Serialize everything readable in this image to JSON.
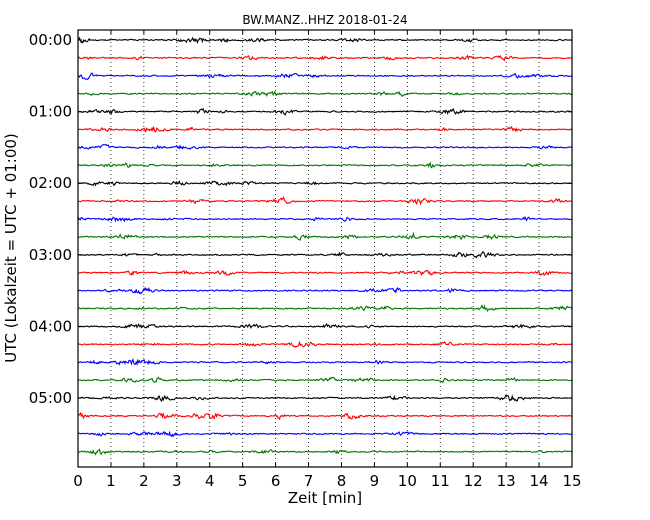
{
  "chart_data": {
    "type": "line",
    "title": "BW.MANZ..HHZ 2018-01-24",
    "xlabel": "Zeit  [min]",
    "ylabel": "UTC (Lokalzeit = UTC + 01:00)",
    "xlim": [
      0,
      15
    ],
    "xticks": [
      "0",
      "1",
      "2",
      "3",
      "4",
      "5",
      "6",
      "7",
      "8",
      "9",
      "10",
      "11",
      "12",
      "13",
      "14",
      "15"
    ],
    "yticks": [
      "00:00",
      "01:00",
      "02:00",
      "03:00",
      "04:00",
      "05:00"
    ],
    "grid": "vertical dotted lines at each minute",
    "trace_interval_minutes": 15,
    "trace_count": 24,
    "trace_colors": [
      "#000000",
      "#ff0000",
      "#0000ff",
      "#007700"
    ],
    "series": [
      {
        "start": "00:00",
        "color": "#000000"
      },
      {
        "start": "00:15",
        "color": "#ff0000"
      },
      {
        "start": "00:30",
        "color": "#0000ff"
      },
      {
        "start": "00:45",
        "color": "#007700"
      },
      {
        "start": "01:00",
        "color": "#000000"
      },
      {
        "start": "01:15",
        "color": "#ff0000"
      },
      {
        "start": "01:30",
        "color": "#0000ff"
      },
      {
        "start": "01:45",
        "color": "#007700"
      },
      {
        "start": "02:00",
        "color": "#000000"
      },
      {
        "start": "02:15",
        "color": "#ff0000"
      },
      {
        "start": "02:30",
        "color": "#0000ff"
      },
      {
        "start": "02:45",
        "color": "#007700"
      },
      {
        "start": "03:00",
        "color": "#000000"
      },
      {
        "start": "03:15",
        "color": "#ff0000"
      },
      {
        "start": "03:30",
        "color": "#0000ff"
      },
      {
        "start": "03:45",
        "color": "#007700"
      },
      {
        "start": "04:00",
        "color": "#000000"
      },
      {
        "start": "04:15",
        "color": "#ff0000"
      },
      {
        "start": "04:30",
        "color": "#0000ff"
      },
      {
        "start": "04:45",
        "color": "#007700"
      },
      {
        "start": "05:00",
        "color": "#000000"
      },
      {
        "start": "05:15",
        "color": "#ff0000"
      },
      {
        "start": "05:30",
        "color": "#0000ff"
      },
      {
        "start": "05:45",
        "color": "#007700"
      }
    ]
  }
}
